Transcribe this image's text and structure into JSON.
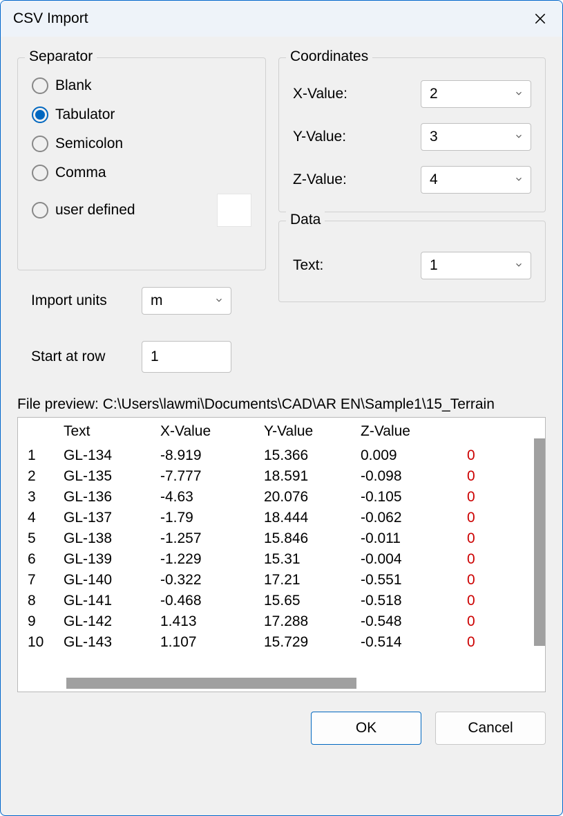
{
  "dialog": {
    "title": "CSV Import"
  },
  "separator": {
    "group_label": "Separator",
    "options": {
      "blank": "Blank",
      "tabulator": "Tabulator",
      "semicolon": "Semicolon",
      "comma": "Comma",
      "user_defined": "user defined"
    },
    "selected": "tabulator",
    "user_defined_value": ""
  },
  "import_units": {
    "label": "Import units",
    "value": "m"
  },
  "start_row": {
    "label": "Start at row",
    "value": "1"
  },
  "coordinates": {
    "group_label": "Coordinates",
    "x_label": "X-Value:",
    "x_value": "2",
    "y_label": "Y-Value:",
    "y_value": "3",
    "z_label": "Z-Value:",
    "z_value": "4"
  },
  "data_group": {
    "group_label": "Data",
    "text_label": "Text:",
    "text_value": "1"
  },
  "preview": {
    "label": "File preview: C:\\Users\\lawmi\\Documents\\CAD\\AR EN\\Sample1\\15_Terrain",
    "columns": {
      "text": "Text",
      "x": "X-Value",
      "y": "Y-Value",
      "z": "Z-Value"
    },
    "rows": [
      {
        "n": "1",
        "text": "GL-134",
        "x": "-8.919",
        "y": "15.366",
        "z": "0.009",
        "e": "0"
      },
      {
        "n": "2",
        "text": "GL-135",
        "x": "-7.777",
        "y": "18.591",
        "z": "-0.098",
        "e": "0"
      },
      {
        "n": "3",
        "text": "GL-136",
        "x": "-4.63",
        "y": "20.076",
        "z": "-0.105",
        "e": "0"
      },
      {
        "n": "4",
        "text": "GL-137",
        "x": "-1.79",
        "y": "18.444",
        "z": "-0.062",
        "e": "0"
      },
      {
        "n": "5",
        "text": "GL-138",
        "x": "-1.257",
        "y": "15.846",
        "z": "-0.011",
        "e": "0"
      },
      {
        "n": "6",
        "text": "GL-139",
        "x": "-1.229",
        "y": "15.31",
        "z": "-0.004",
        "e": "0"
      },
      {
        "n": "7",
        "text": "GL-140",
        "x": "-0.322",
        "y": "17.21",
        "z": "-0.551",
        "e": "0"
      },
      {
        "n": "8",
        "text": "GL-141",
        "x": "-0.468",
        "y": "15.65",
        "z": "-0.518",
        "e": "0"
      },
      {
        "n": "9",
        "text": "GL-142",
        "x": "1.413",
        "y": "17.288",
        "z": "-0.548",
        "e": "0"
      },
      {
        "n": "10",
        "text": "GL-143",
        "x": "1.107",
        "y": "15.729",
        "z": "-0.514",
        "e": "0"
      }
    ]
  },
  "buttons": {
    "ok": "OK",
    "cancel": "Cancel"
  },
  "colors": {
    "accent": "#0067c0",
    "border": "#c0c0c0",
    "bg": "#f0f0f0",
    "titlebg": "#eef3f9",
    "error": "#cc0000"
  }
}
